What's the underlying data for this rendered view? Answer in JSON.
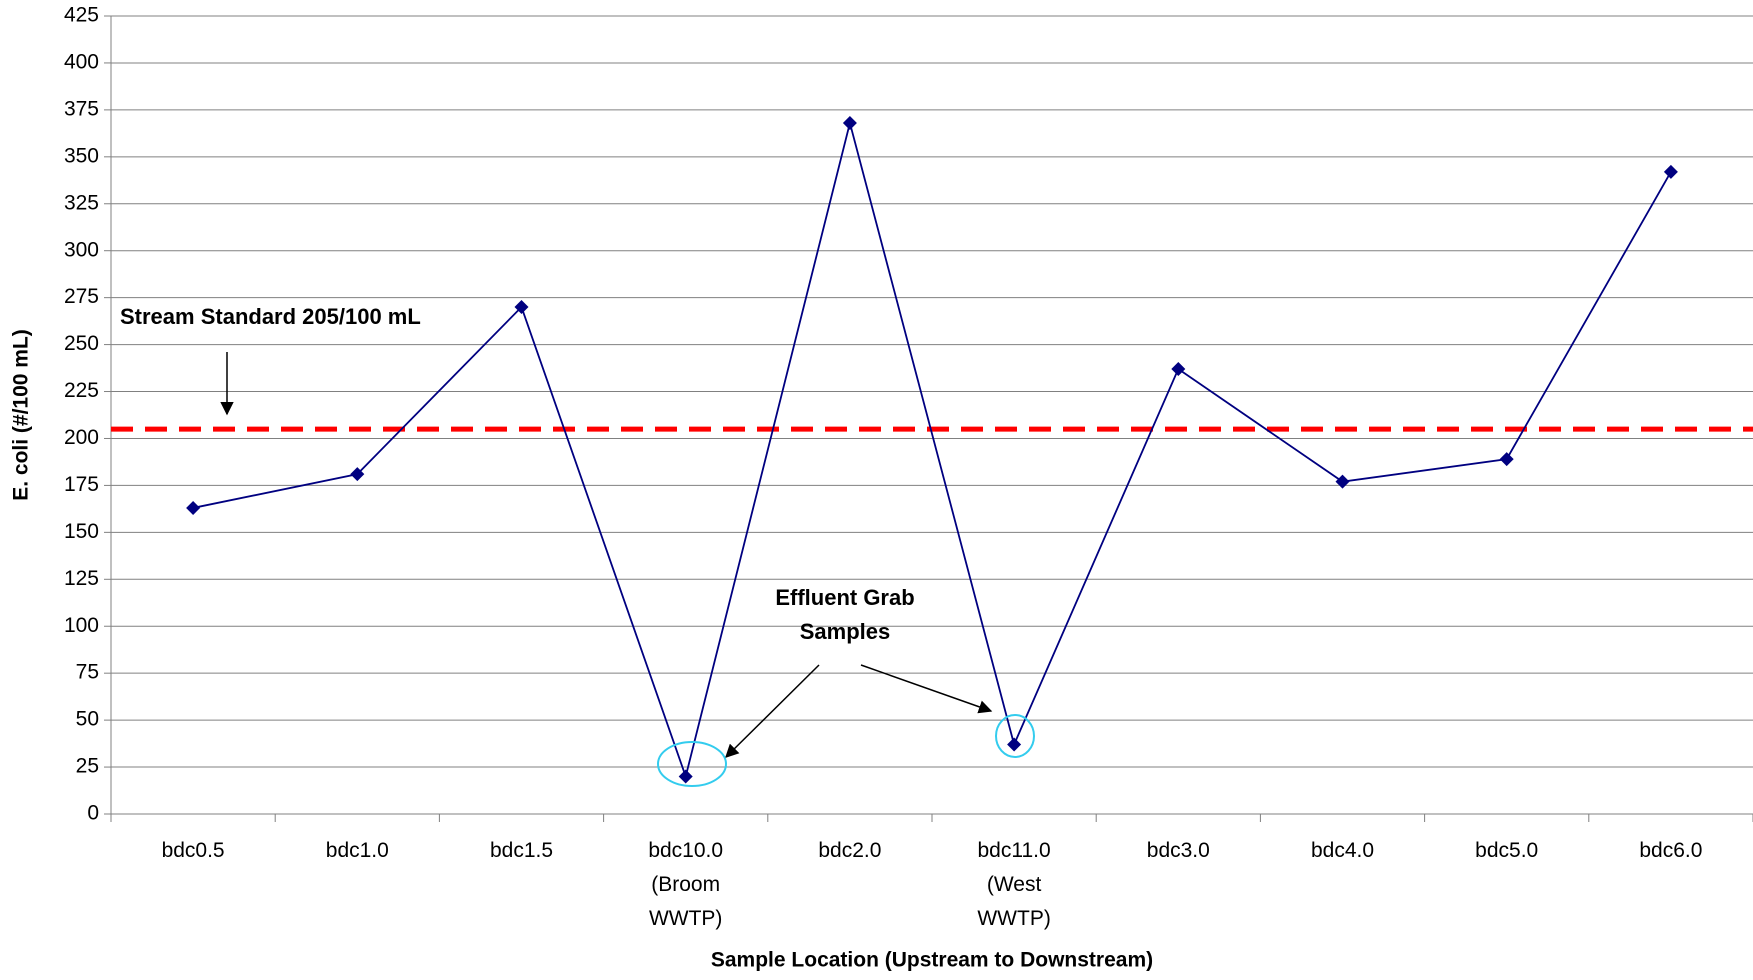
{
  "chart_data": {
    "type": "line",
    "x_label": "Sample Location (Upstream to Downstream)",
    "y_label": "E. coli (#/100 mL)",
    "categories": [
      "bdc0.5",
      "bdc1.0",
      "bdc1.5",
      "bdc10.0\n(Broom\nWWTP)",
      "bdc2.0",
      "bdc11.0\n(West\nWWTP)",
      "bdc3.0",
      "bdc4.0",
      "bdc5.0",
      "bdc6.0"
    ],
    "series": [
      {
        "name": "E. coli",
        "color": "#000080",
        "values": [
          163,
          181,
          270,
          20,
          368,
          37,
          237,
          177,
          189,
          342
        ]
      }
    ],
    "reference_line": {
      "value": 205,
      "color": "#ff0000"
    },
    "annotations": [
      "Stream Standard 205/100 mL",
      "Effluent Grab\nSamples"
    ],
    "ylim": [
      0,
      425
    ],
    "yticks": [
      0,
      25,
      50,
      75,
      100,
      125,
      150,
      175,
      200,
      225,
      250,
      275,
      300,
      325,
      350,
      375,
      400,
      425
    ],
    "grid": true
  }
}
